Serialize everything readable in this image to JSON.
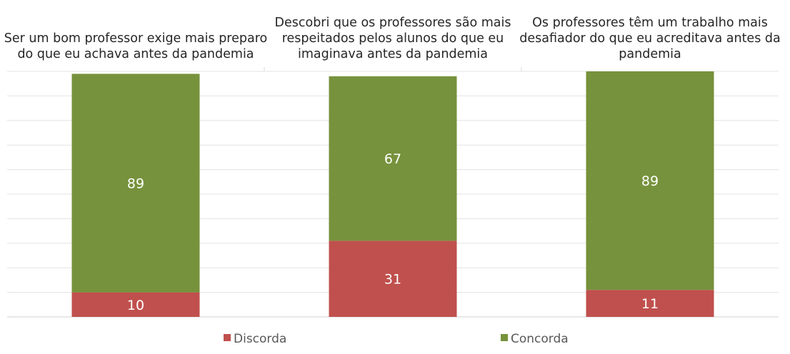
{
  "chart_data": {
    "type": "bar",
    "stacked": true,
    "orientation": "vertical",
    "categories": [
      [
        "Ser um bom professor exige mais preparo",
        "do que eu achava antes da pandemia"
      ],
      [
        "Descobri que os professores são mais",
        "respeitados pelos alunos do que eu",
        "imaginava antes da pandemia"
      ],
      [
        "Os professores têm um trabalho mais",
        "desafiador do que eu acreditava antes da",
        "pandemia"
      ]
    ],
    "category_label_position": "top",
    "series": [
      {
        "name": "Discorda",
        "values": [
          10,
          31,
          11
        ],
        "color": "#c0504d"
      },
      {
        "name": "Concorda",
        "values": [
          89,
          67,
          89
        ],
        "color": "#76923c"
      }
    ],
    "data_labels": true,
    "ylim": [
      0,
      100
    ],
    "y_axis_visible": false,
    "grid": true,
    "legend": "bottom",
    "title": "",
    "xlabel": "",
    "ylabel": ""
  }
}
